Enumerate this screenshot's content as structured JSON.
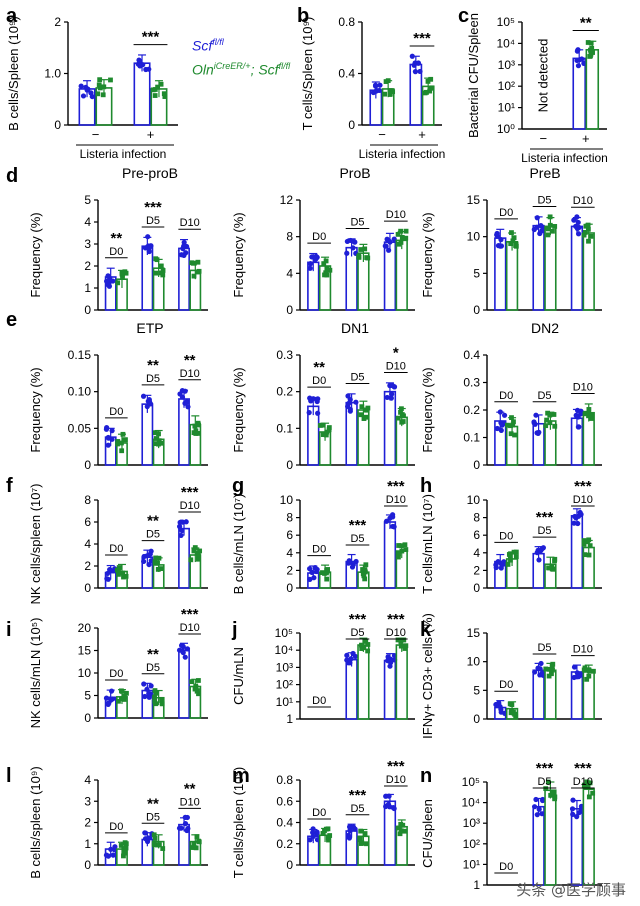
{
  "legend": {
    "wt": "Scf",
    "wt_sup": "fl/fl",
    "ko_a": "Oln",
    "ko_sup1": "iCreER/+",
    "ko_b": "; Scf",
    "ko_sup2": "fl/fl"
  },
  "colors": {
    "wt": "#1f1fd6",
    "ko": "#1f8a2e",
    "text": "#000000"
  },
  "watermark": "头条 @医学顾事",
  "chart_data": [
    {
      "id": "a",
      "letter": "a",
      "type": "bar",
      "ylabel": "B cells/Spleen (10⁹)",
      "scale": "linear",
      "ylim": [
        0,
        2
      ],
      "ticks": [
        0,
        1,
        2
      ],
      "tick_labels": [
        "0",
        "1.0",
        "2"
      ],
      "groups": [
        {
          "tick": "−",
          "wt": 0.7,
          "ko": 0.72,
          "ns": ""
        },
        {
          "tick": "+",
          "wt": 1.2,
          "ko": 0.7,
          "ns": "***"
        }
      ],
      "xlabel": "Listeria infection"
    },
    {
      "id": "b",
      "letter": "b",
      "type": "bar",
      "ylabel": "T cells/Spleen (10⁹)",
      "scale": "linear",
      "ylim": [
        0,
        0.8
      ],
      "ticks": [
        0,
        0.4,
        0.8
      ],
      "tick_labels": [
        "0",
        "0.4",
        "0.8"
      ],
      "groups": [
        {
          "tick": "−",
          "wt": 0.27,
          "ko": 0.28,
          "ns": ""
        },
        {
          "tick": "+",
          "wt": 0.47,
          "ko": 0.3,
          "ns": "***"
        }
      ],
      "xlabel": "Listeria infection"
    },
    {
      "id": "c",
      "letter": "c",
      "type": "bar",
      "ylabel": "Bacterial CFU/Spleen",
      "scale": "log",
      "ylim": [
        0,
        5
      ],
      "ticks": [
        0,
        1,
        2,
        3,
        4,
        5
      ],
      "tick_labels": [
        "10⁰",
        "10¹",
        "10²",
        "10³",
        "10⁴",
        "10⁵"
      ],
      "groups": [
        {
          "tick": "−",
          "wt": null,
          "ko": null,
          "ns": ""
        },
        {
          "tick": "+",
          "wt": 3.3,
          "ko": 3.7,
          "ns": "**",
          "split": true
        }
      ],
      "note": "Not detected",
      "xlabel": "Listeria infection"
    },
    {
      "id": "d1",
      "letter": "d",
      "title": "Pre-proB",
      "type": "bar",
      "ylabel": "Frequency (%)",
      "scale": "linear",
      "ylim": [
        0,
        5
      ],
      "ticks": [
        0,
        1,
        2,
        3,
        4,
        5
      ],
      "tick_labels": [
        "0",
        "1",
        "2",
        "3",
        "4",
        "5"
      ],
      "groups": [
        {
          "tick": "D0",
          "wt": 1.5,
          "ko": 1.4,
          "ns": "**"
        },
        {
          "tick": "D5",
          "wt": 2.9,
          "ko": 1.9,
          "ns": "***"
        },
        {
          "tick": "D10",
          "wt": 2.8,
          "ko": 1.8,
          "ns": ""
        }
      ]
    },
    {
      "id": "d2",
      "letter": "",
      "title": "ProB",
      "type": "bar",
      "ylabel": "Frequency (%)",
      "scale": "linear",
      "ylim": [
        0,
        12
      ],
      "ticks": [
        0,
        4,
        8,
        12
      ],
      "tick_labels": [
        "0",
        "4",
        "8",
        "12"
      ],
      "groups": [
        {
          "tick": "D0",
          "wt": 5.2,
          "ko": 4.8,
          "ns": ""
        },
        {
          "tick": "D5",
          "wt": 6.8,
          "ko": 6.2,
          "ns": ""
        },
        {
          "tick": "D10",
          "wt": 7.4,
          "ko": 7.6,
          "ns": ""
        }
      ]
    },
    {
      "id": "d3",
      "letter": "",
      "title": "PreB",
      "type": "bar",
      "ylabel": "Frequency (%)",
      "scale": "linear",
      "ylim": [
        0,
        15
      ],
      "ticks": [
        0,
        5,
        10,
        15
      ],
      "tick_labels": [
        "0",
        "5",
        "10",
        "15"
      ],
      "groups": [
        {
          "tick": "D0",
          "wt": 9.8,
          "ko": 9.3,
          "ns": ""
        },
        {
          "tick": "D5",
          "wt": 11.5,
          "ko": 11.4,
          "ns": ""
        },
        {
          "tick": "D10",
          "wt": 11.4,
          "ko": 10.5,
          "ns": ""
        }
      ]
    },
    {
      "id": "e1",
      "letter": "e",
      "title": "ETP",
      "type": "bar",
      "ylabel": "Frequency (%)",
      "scale": "linear",
      "ylim": [
        0,
        0.15
      ],
      "ticks": [
        0,
        0.05,
        0.1,
        0.15
      ],
      "tick_labels": [
        "0",
        "0.05",
        "0.10",
        "0.15"
      ],
      "groups": [
        {
          "tick": "D0",
          "wt": 0.038,
          "ko": 0.03,
          "ns": ""
        },
        {
          "tick": "D5",
          "wt": 0.083,
          "ko": 0.035,
          "ns": "**"
        },
        {
          "tick": "D10",
          "wt": 0.09,
          "ko": 0.055,
          "ns": "**"
        }
      ]
    },
    {
      "id": "e2",
      "letter": "",
      "title": "DN1",
      "type": "bar",
      "ylabel": "Frequency (%)",
      "scale": "linear",
      "ylim": [
        0,
        0.3
      ],
      "ticks": [
        0,
        0.1,
        0.2,
        0.3
      ],
      "tick_labels": [
        "0",
        "0.1",
        "0.2",
        "0.3"
      ],
      "groups": [
        {
          "tick": "D0",
          "wt": 0.16,
          "ko": 0.09,
          "ns": "**"
        },
        {
          "tick": "D5",
          "wt": 0.17,
          "ko": 0.15,
          "ns": ""
        },
        {
          "tick": "D10",
          "wt": 0.2,
          "ko": 0.13,
          "ns": "*"
        }
      ]
    },
    {
      "id": "e3",
      "letter": "",
      "title": "DN2",
      "type": "bar",
      "ylabel": "Frequency (%)",
      "scale": "linear",
      "ylim": [
        0,
        0.4
      ],
      "ticks": [
        0,
        0.1,
        0.2,
        0.3,
        0.4
      ],
      "tick_labels": [
        "0",
        "0.1",
        "0.2",
        "0.3",
        "0.4"
      ],
      "groups": [
        {
          "tick": "D0",
          "wt": 0.16,
          "ko": 0.14,
          "ns": ""
        },
        {
          "tick": "D5",
          "wt": 0.15,
          "ko": 0.16,
          "ns": ""
        },
        {
          "tick": "D10",
          "wt": 0.17,
          "ko": 0.19,
          "ns": ""
        }
      ]
    },
    {
      "id": "f",
      "letter": "f",
      "type": "bar",
      "ylabel": "NK cells/spleen (10⁷)",
      "scale": "linear",
      "ylim": [
        0,
        8
      ],
      "ticks": [
        0,
        2,
        4,
        6,
        8
      ],
      "tick_labels": [
        "0",
        "2",
        "4",
        "6",
        "8"
      ],
      "groups": [
        {
          "tick": "D0",
          "wt": 1.4,
          "ko": 1.5,
          "ns": ""
        },
        {
          "tick": "D5",
          "wt": 2.8,
          "ko": 2.1,
          "ns": "**"
        },
        {
          "tick": "D10",
          "wt": 5.4,
          "ko": 3.0,
          "ns": "***"
        }
      ]
    },
    {
      "id": "g",
      "letter": "g",
      "type": "bar",
      "ylabel": "B cells/mLN (10⁷)",
      "scale": "linear",
      "ylim": [
        0,
        10
      ],
      "ticks": [
        0,
        2,
        4,
        6,
        8,
        10
      ],
      "tick_labels": [
        "0",
        "2",
        "4",
        "6",
        "8",
        "10"
      ],
      "groups": [
        {
          "tick": "D0",
          "wt": 1.7,
          "ko": 1.8,
          "ns": ""
        },
        {
          "tick": "D5",
          "wt": 3.0,
          "ko": 1.8,
          "ns": "***"
        },
        {
          "tick": "D10",
          "wt": 7.5,
          "ko": 4.2,
          "ns": "***"
        }
      ]
    },
    {
      "id": "h",
      "letter": "h",
      "type": "bar",
      "ylabel": "T cells/mLN (10⁷)",
      "scale": "linear",
      "ylim": [
        0,
        10
      ],
      "ticks": [
        0,
        2,
        4,
        6,
        8,
        10
      ],
      "tick_labels": [
        "0",
        "2",
        "4",
        "6",
        "8",
        "10"
      ],
      "groups": [
        {
          "tick": "D0",
          "wt": 3.0,
          "ko": 3.3,
          "ns": ""
        },
        {
          "tick": "D5",
          "wt": 3.9,
          "ko": 2.7,
          "ns": "***"
        },
        {
          "tick": "D10",
          "wt": 8.2,
          "ko": 4.6,
          "ns": "***"
        }
      ]
    },
    {
      "id": "i",
      "letter": "i",
      "type": "bar",
      "ylabel": "NK cells/mLN (10⁵)",
      "scale": "linear",
      "ylim": [
        0,
        20
      ],
      "ticks": [
        0,
        5,
        10,
        15,
        20
      ],
      "tick_labels": [
        "0",
        "5",
        "10",
        "15",
        "20"
      ],
      "groups": [
        {
          "tick": "D0",
          "wt": 4.6,
          "ko": 4.7,
          "ns": ""
        },
        {
          "tick": "D5",
          "wt": 6.1,
          "ko": 4.5,
          "ns": "**"
        },
        {
          "tick": "D10",
          "wt": 15.0,
          "ko": 7.0,
          "ns": "***"
        }
      ]
    },
    {
      "id": "j",
      "letter": "j",
      "type": "bar",
      "ylabel": "CFU/mLN",
      "scale": "log",
      "ylim": [
        0,
        5
      ],
      "ticks": [
        0,
        1,
        2,
        3,
        4,
        5
      ],
      "tick_labels": [
        "1",
        "10¹",
        "10²",
        "10³",
        "10⁴",
        "10⁵"
      ],
      "groups": [
        {
          "tick": "D0",
          "wt": null,
          "ko": null,
          "ns": ""
        },
        {
          "tick": "D5",
          "wt": 3.45,
          "ko": 4.3,
          "ns": "***"
        },
        {
          "tick": "D10",
          "wt": 3.4,
          "ko": 4.3,
          "ns": "***"
        }
      ]
    },
    {
      "id": "k",
      "letter": "k",
      "type": "bar",
      "ylabel": "IFNγ+ CD3+ cells (%)",
      "scale": "linear",
      "ylim": [
        0,
        15
      ],
      "ticks": [
        0,
        5,
        10,
        15
      ],
      "tick_labels": [
        "0",
        "5",
        "10",
        "15"
      ],
      "groups": [
        {
          "tick": "D0",
          "wt": 2.0,
          "ko": 1.8,
          "ns": ""
        },
        {
          "tick": "D5",
          "wt": 8.5,
          "ko": 8.5,
          "ns": ""
        },
        {
          "tick": "D10",
          "wt": 8.2,
          "ko": 8.2,
          "ns": ""
        }
      ]
    },
    {
      "id": "l",
      "letter": "l",
      "type": "bar",
      "ylabel": "B cells/spleen (10⁹)",
      "scale": "linear",
      "ylim": [
        0,
        4
      ],
      "ticks": [
        0,
        1,
        2,
        3,
        4
      ],
      "tick_labels": [
        "0",
        "1",
        "2",
        "3",
        "4"
      ],
      "groups": [
        {
          "tick": "D0",
          "wt": 0.75,
          "ko": 0.75,
          "ns": ""
        },
        {
          "tick": "D5",
          "wt": 1.2,
          "ko": 1.1,
          "ns": "**"
        },
        {
          "tick": "D10",
          "wt": 1.9,
          "ko": 1.1,
          "ns": "**"
        }
      ]
    },
    {
      "id": "m",
      "letter": "m",
      "type": "bar",
      "ylabel": "T cells/spleen (10⁹)",
      "scale": "linear",
      "ylim": [
        0,
        0.8
      ],
      "ticks": [
        0,
        0.2,
        0.4,
        0.6,
        0.8
      ],
      "tick_labels": [
        "0",
        "0.2",
        "0.4",
        "0.6",
        "0.8"
      ],
      "groups": [
        {
          "tick": "D0",
          "wt": 0.27,
          "ko": 0.28,
          "ns": ""
        },
        {
          "tick": "D5",
          "wt": 0.32,
          "ko": 0.27,
          "ns": "***"
        },
        {
          "tick": "D10",
          "wt": 0.6,
          "ko": 0.36,
          "ns": "***"
        }
      ]
    },
    {
      "id": "n",
      "letter": "n",
      "type": "bar",
      "ylabel": "CFU/spleen",
      "scale": "log",
      "ylim": [
        0,
        5
      ],
      "ticks": [
        0,
        1,
        2,
        3,
        4,
        5
      ],
      "tick_labels": [
        "1",
        "10¹",
        "10²",
        "10³",
        "10⁴",
        "10⁵"
      ],
      "groups": [
        {
          "tick": "D0",
          "wt": null,
          "ko": null,
          "ns": ""
        },
        {
          "tick": "D5",
          "wt": 3.8,
          "ko": 4.6,
          "ns": "***"
        },
        {
          "tick": "D10",
          "wt": 3.7,
          "ko": 4.65,
          "ns": "***"
        }
      ]
    }
  ]
}
